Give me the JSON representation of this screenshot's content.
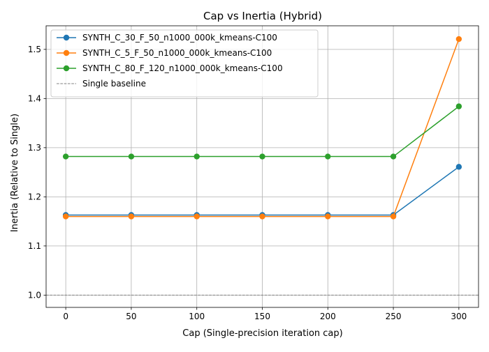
{
  "chart_data": {
    "type": "line",
    "title": "Cap vs Inertia (Hybrid)",
    "xlabel": "Cap (Single-precision iteration cap)",
    "ylabel": "Inertia (Relative to Single)",
    "x": [
      0,
      50,
      100,
      150,
      200,
      250,
      300
    ],
    "xlim": [
      -15,
      315
    ],
    "ylim": [
      0.975,
      1.548
    ],
    "xticks": [
      0,
      50,
      100,
      150,
      200,
      250,
      300
    ],
    "yticks": [
      1.0,
      1.1,
      1.2,
      1.3,
      1.4,
      1.5
    ],
    "xtick_labels": [
      "0",
      "50",
      "100",
      "150",
      "200",
      "250",
      "300"
    ],
    "ytick_labels": [
      "1.0",
      "1.1",
      "1.2",
      "1.3",
      "1.4",
      "1.5"
    ],
    "grid": true,
    "legend_position": "upper-left",
    "series": [
      {
        "name": "SYNTH_C_30_F_50_n1000_000k_kmeans-C100",
        "color": "#1f77b4",
        "values": [
          1.163,
          1.163,
          1.163,
          1.163,
          1.163,
          1.163,
          1.261
        ]
      },
      {
        "name": "SYNTH_C_5_F_50_n1000_000k_kmeans-C100",
        "color": "#ff7f0e",
        "values": [
          1.16,
          1.16,
          1.16,
          1.16,
          1.16,
          1.16,
          1.521
        ]
      },
      {
        "name": "SYNTH_C_80_F_120_n1000_000k_kmeans-C100",
        "color": "#2ca02c",
        "values": [
          1.282,
          1.282,
          1.282,
          1.282,
          1.282,
          1.282,
          1.384
        ]
      }
    ],
    "baseline": {
      "name": "Single baseline",
      "value": 1.0,
      "color": "#808080",
      "style": "dashed"
    }
  }
}
